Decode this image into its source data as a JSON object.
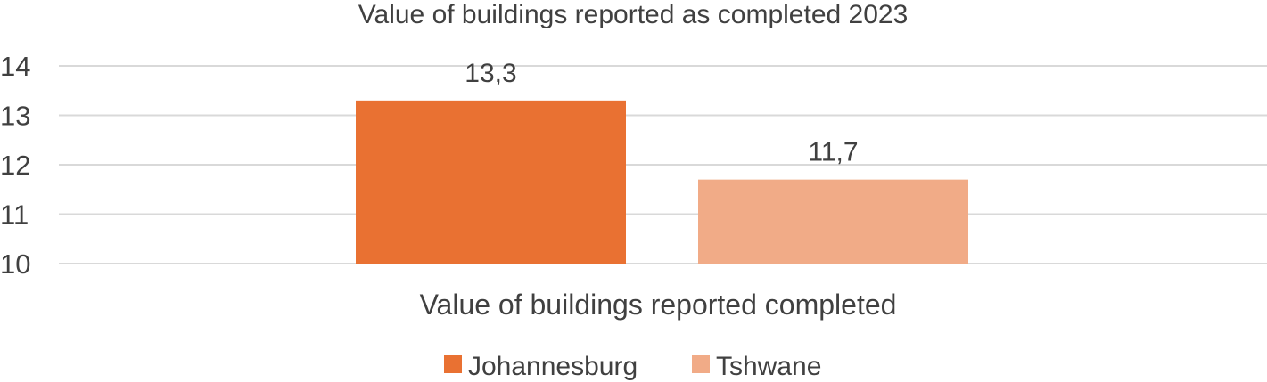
{
  "chart_data": {
    "type": "bar",
    "title": "Value of buildings reported as completed 2023",
    "categories": [
      "Value of buildings reported completed"
    ],
    "series": [
      {
        "name": "Johannesburg",
        "values": [
          13.3
        ],
        "color": "#E97132"
      },
      {
        "name": "Tshwane",
        "values": [
          11.7
        ],
        "color": "#F1AB87"
      }
    ],
    "data_labels": [
      "13,3",
      "11,7"
    ],
    "xlabel": "",
    "ylabel": "",
    "ylim": [
      10,
      14
    ],
    "yticks": [
      10,
      11,
      12,
      13,
      14
    ],
    "ytick_labels": [
      "10",
      "11",
      "12",
      "13",
      "14"
    ],
    "grid": true,
    "gridline_color": "#D9D9D9",
    "legend_position": "bottom"
  }
}
